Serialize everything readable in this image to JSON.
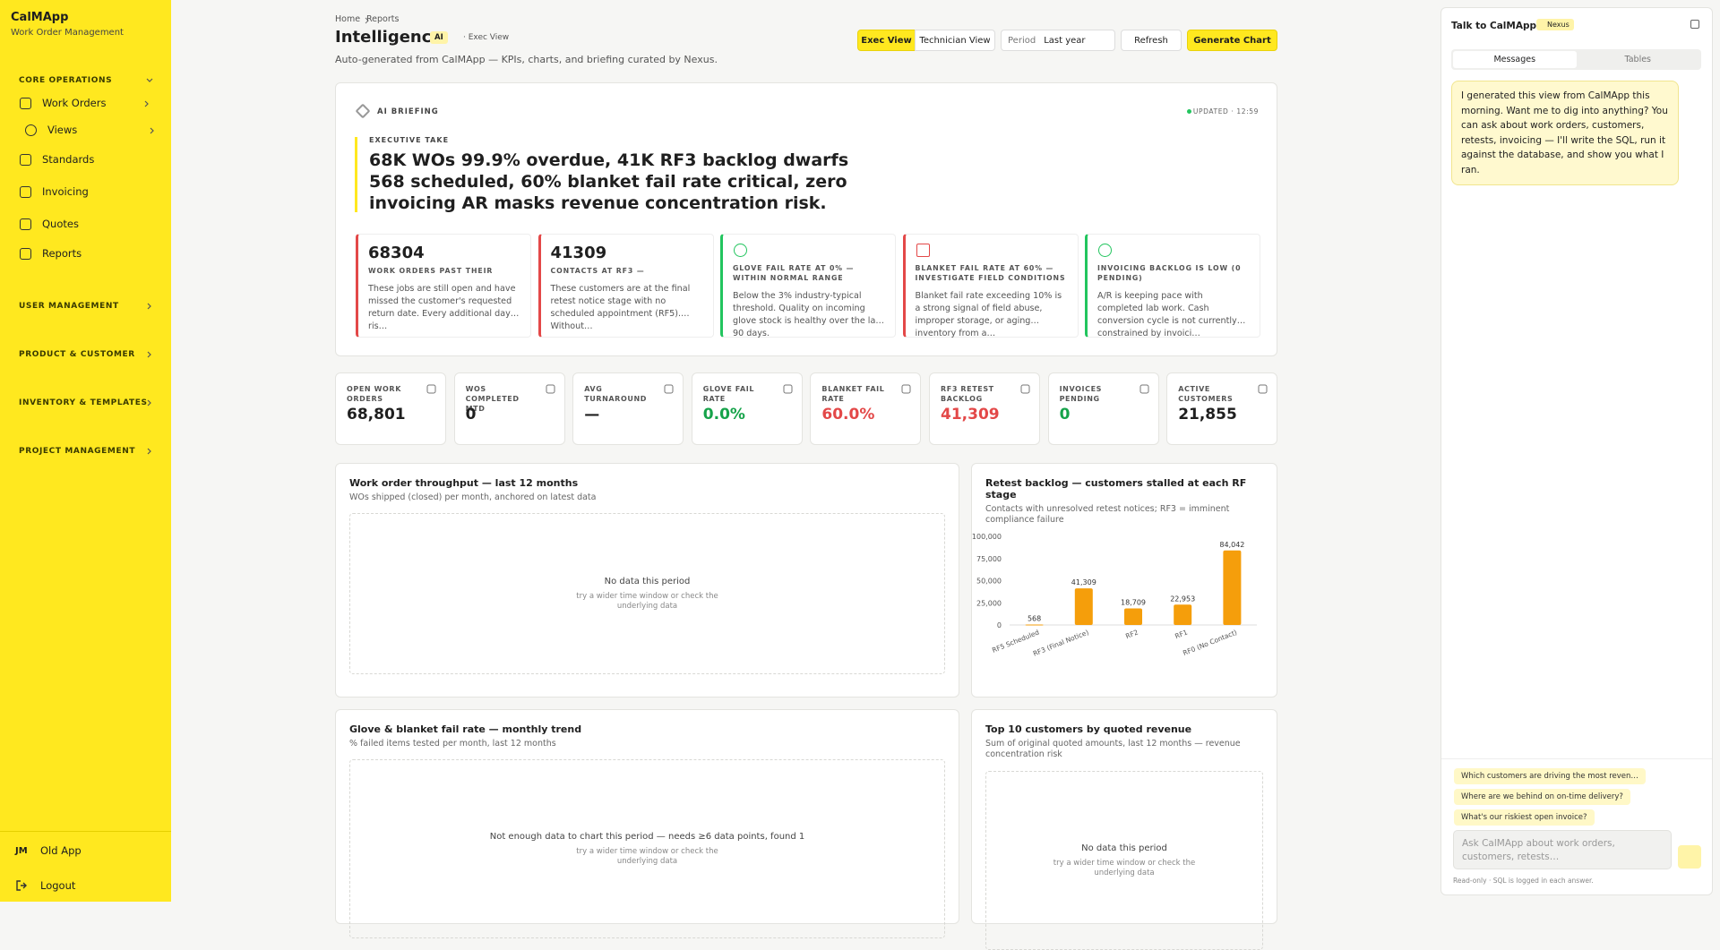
{
  "sidebar": {
    "brand": "CalMApp",
    "tagline": "Work Order Management",
    "groups": [
      {
        "title": "CORE OPERATIONS",
        "items": [
          "Work Orders",
          "Views",
          "Standards",
          "Invoicing",
          "Quotes",
          "Reports"
        ]
      },
      {
        "title": "USER MANAGEMENT"
      },
      {
        "title": "PRODUCT & CUSTOMER"
      },
      {
        "title": "INVENTORY & TEMPLATES"
      },
      {
        "title": "PROJECT MANAGEMENT"
      }
    ],
    "user": {
      "initials": "JM",
      "link": "Old App"
    },
    "logout": "Logout"
  },
  "header": {
    "breadcrumb": [
      "Home",
      "Reports"
    ],
    "title": "Intelligence",
    "badge": "AI",
    "view": "· Exec View",
    "subtitle": "Auto-generated from CalMApp — KPIs, charts, and briefing curated by Nexus.",
    "tabs": [
      "Exec View",
      "Technician View"
    ],
    "period_label": "Period",
    "period_value": "Last year",
    "refresh": "Refresh",
    "generate": "Generate Chart"
  },
  "briefing": {
    "label": "AI BRIEFING",
    "updated": "UPDATED · 12:59",
    "take_label": "EXECUTIVE TAKE",
    "headline": "68K WOs 99.9% overdue, 41K RF3 backlog dwarfs 568 scheduled, 60% blanket fail rate critical, zero invoicing AR masks revenue concentration risk.",
    "insights": [
      {
        "value": "68304",
        "title": "WORK ORDERS PAST THEIR",
        "body": "These jobs are still open and have missed the customer's requested return date. Every additional day ris…"
      },
      {
        "value": "41309",
        "title": "CONTACTS AT RF3 —",
        "body": "These customers are at the final retest notice stage with no scheduled appointment (RF5). Without…"
      },
      {
        "title": "GLOVE FAIL RATE AT 0% — WITHIN NORMAL RANGE",
        "body": "Below the 3% industry-typical threshold. Quality on incoming glove stock is healthy over the last 90 days."
      },
      {
        "title": "BLANKET FAIL RATE AT 60% — INVESTIGATE FIELD CONDITIONS",
        "body": "Blanket fail rate exceeding 10% is a strong signal of field abuse, improper storage, or aging inventory from a…"
      },
      {
        "title": "INVOICING BACKLOG IS LOW (0 PENDING)",
        "body": "A/R is keeping pace with completed lab work. Cash conversion cycle is not currently constrained by invoici…"
      }
    ]
  },
  "kpis": [
    {
      "label": "OPEN WORK ORDERS",
      "value": "68,801"
    },
    {
      "label": "WOS COMPLETED MTD",
      "value": "0"
    },
    {
      "label": "AVG TURNAROUND",
      "value": "—"
    },
    {
      "label": "GLOVE FAIL RATE",
      "value": "0.0%"
    },
    {
      "label": "BLANKET FAIL RATE",
      "value": "60.0%"
    },
    {
      "label": "RF3 RETEST BACKLOG",
      "value": "41,309"
    },
    {
      "label": "INVOICES PENDING",
      "value": "0"
    },
    {
      "label": "ACTIVE CUSTOMERS",
      "value": "21,855"
    }
  ],
  "panels": [
    {
      "title": "Work order throughput — last 12 months",
      "subtitle": "WOs shipped (closed) per month, anchored on latest data",
      "empty": "No data this period",
      "hint": "try a wider time window or check the underlying data"
    },
    {
      "title": "Glove & blanket fail rate — monthly trend",
      "subtitle": "% failed items tested per month, last 12 months",
      "empty": "Not enough data to chart this period — needs ≥6 data points, found 1",
      "hint": "try a wider time window or check the underlying data"
    },
    {
      "title": "Top 10 customers by quoted revenue",
      "subtitle": "Sum of original quoted amounts, last 12 months — revenue concentration risk",
      "empty": "No data this period",
      "hint": "try a wider time window or check the underlying data"
    }
  ],
  "chart_data": {
    "type": "bar",
    "title": "Retest backlog — customers stalled at each RF stage",
    "subtitle": "Contacts with unresolved retest notices; RF3 = imminent compliance failure",
    "categories": [
      "RF5 Scheduled",
      "RF3 (Final Notice)",
      "RF2",
      "RF1",
      "RF0 (No Contact)"
    ],
    "values": [
      568,
      41309,
      18709,
      22953,
      84042
    ],
    "value_labels": [
      "568",
      "41,309",
      "18,709",
      "22,953",
      "84,042"
    ],
    "color": "#f59e0b",
    "ylim": [
      0,
      100000
    ],
    "yticks": [
      0,
      {
        "value": 25000,
        "label": "25,000"
      },
      {
        "value": 50000,
        "label": "50,000"
      },
      {
        "value": 75000,
        "label": "75,000"
      },
      {
        "value": 100000,
        "label": "100,000"
      }
    ]
  },
  "chat": {
    "title": "Talk to CalMApp",
    "badge": "Nexus",
    "tabs": [
      "Messages",
      "Tables"
    ],
    "message": "I generated this view from CalMApp this morning. Want me to dig into anything? You can ask about work orders, customers, retests, invoicing — I'll write the SQL, run it against the database, and show you what I ran.",
    "suggestions": [
      "Which customers are driving the most reven…",
      "Where are we behind on on-time delivery?",
      "What's our riskiest open invoice?"
    ],
    "placeholder": "Ask CalMApp about work orders, customers, retests…",
    "footer": "Read-only · SQL is logged in each answer."
  }
}
